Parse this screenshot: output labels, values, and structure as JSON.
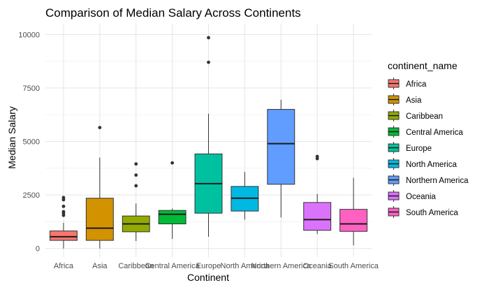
{
  "chart_data": {
    "type": "boxplot",
    "title": "Comparison of Median Salary Across Continents",
    "xlabel": "Continent",
    "ylabel": "Median Salary",
    "ylim": [
      -400,
      10500
    ],
    "yticks": [
      0,
      2500,
      5000,
      7500,
      10000
    ],
    "grid": true,
    "legend": {
      "title": "continent_name",
      "placement": "right"
    },
    "categories": [
      "Africa",
      "Asia",
      "Caribbean",
      "Central America",
      "Europe",
      "North America",
      "Northern America",
      "Oceania",
      "South America"
    ],
    "series": [
      {
        "name": "Africa",
        "color": "#F8766D",
        "q1": 380,
        "median": 550,
        "q3": 820,
        "whisker_low": 0,
        "whisker_high": 1200,
        "outliers": [
          1550,
          1650,
          1720,
          1970,
          2280,
          2380
        ]
      },
      {
        "name": "Asia",
        "color": "#D39200",
        "q1": 380,
        "median": 950,
        "q3": 2350,
        "whisker_low": 0,
        "whisker_high": 4250,
        "outliers": [
          5650
        ]
      },
      {
        "name": "Caribbean",
        "color": "#93AA00",
        "q1": 780,
        "median": 1150,
        "q3": 1520,
        "whisker_low": 350,
        "whisker_high": 2100,
        "outliers": [
          2930,
          3430,
          3950
        ]
      },
      {
        "name": "Central America",
        "color": "#00BA38",
        "q1": 1150,
        "median": 1600,
        "q3": 1780,
        "whisker_low": 450,
        "whisker_high": 1870,
        "outliers": [
          4000
        ]
      },
      {
        "name": "Europe",
        "color": "#00C19F",
        "q1": 1650,
        "median": 3030,
        "q3": 4420,
        "whisker_low": 550,
        "whisker_high": 6300,
        "outliers": [
          8700,
          9850
        ]
      },
      {
        "name": "North America",
        "color": "#00B9E3",
        "q1": 1750,
        "median": 2350,
        "q3": 2900,
        "whisker_low": 1350,
        "whisker_high": 3580,
        "outliers": []
      },
      {
        "name": "Northern America",
        "color": "#619CFF",
        "q1": 3000,
        "median": 4900,
        "q3": 6500,
        "whisker_low": 1450,
        "whisker_high": 6950,
        "outliers": []
      },
      {
        "name": "Oceania",
        "color": "#DB72FB",
        "q1": 850,
        "median": 1350,
        "q3": 2150,
        "whisker_low": 680,
        "whisker_high": 2550,
        "outliers": [
          4200,
          4300
        ]
      },
      {
        "name": "South America",
        "color": "#FF61C3",
        "q1": 800,
        "median": 1150,
        "q3": 1830,
        "whisker_low": 150,
        "whisker_high": 3300,
        "outliers": []
      }
    ]
  }
}
